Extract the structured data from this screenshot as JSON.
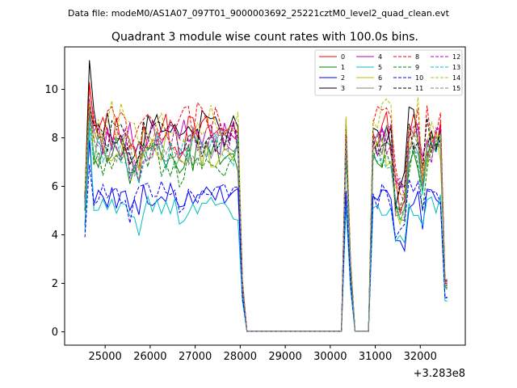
{
  "header": {
    "data_file": "Data file: modeM0/AS1A07_097T01_9000003692_25221cztM0_level2_quad_clean.evt"
  },
  "chart_data": {
    "type": "line",
    "title": "Quadrant 3 module wise count rates with 100.0s bins.",
    "xlabel": "",
    "ylabel": "",
    "x_offset_label": "+3.283e8",
    "xlim": [
      24100,
      33000
    ],
    "ylim": [
      -0.55,
      11.75
    ],
    "xticks": [
      25000,
      26000,
      27000,
      28000,
      29000,
      30000,
      31000,
      32000
    ],
    "yticks": [
      0,
      2,
      4,
      6,
      8,
      10
    ],
    "grid": false,
    "legend": {
      "position": "top-right",
      "columns": 4
    },
    "x": [
      24550,
      24650,
      24750,
      24850,
      24950,
      25050,
      25150,
      25250,
      25350,
      25450,
      25550,
      25650,
      25750,
      25850,
      25950,
      26050,
      26150,
      26250,
      26350,
      26450,
      26550,
      26650,
      26750,
      26850,
      26950,
      27050,
      27150,
      27250,
      27350,
      27450,
      27550,
      27650,
      27750,
      27850,
      27950,
      28050,
      28150,
      28250,
      28350,
      28450,
      28550,
      28650,
      28750,
      28850,
      28950,
      29050,
      29150,
      29250,
      29350,
      29450,
      29550,
      29650,
      29750,
      29850,
      29950,
      30050,
      30150,
      30250,
      30350,
      30450,
      30550,
      30650,
      30750,
      30850,
      30950,
      31050,
      31150,
      31250,
      31350,
      31450,
      31550,
      31650,
      31750,
      31850,
      31950,
      32050,
      32150,
      32250,
      32350,
      32450,
      32550,
      32600
    ],
    "series": [
      {
        "name": "0",
        "color": "#ff0000",
        "dash": false,
        "level": 8.2,
        "start": 5.5,
        "peak": 10.3
      },
      {
        "name": "1",
        "color": "#008000",
        "dash": false,
        "level": 7.3,
        "start": 5.0,
        "peak": 9.2
      },
      {
        "name": "2",
        "color": "#0000ff",
        "dash": false,
        "level": 5.6,
        "start": 4.4,
        "peak": 7.9
      },
      {
        "name": "3",
        "color": "#000000",
        "dash": false,
        "level": 8.4,
        "start": 5.6,
        "peak": 11.2
      },
      {
        "name": "4",
        "color": "#bf00bf",
        "dash": false,
        "level": 8.0,
        "start": 5.4,
        "peak": 9.6
      },
      {
        "name": "5",
        "color": "#00bfbf",
        "dash": false,
        "level": 5.1,
        "start": 4.1,
        "peak": 8.5
      },
      {
        "name": "6",
        "color": "#bfbf00",
        "dash": false,
        "level": 7.5,
        "start": 5.2,
        "peak": 9.4
      },
      {
        "name": "7",
        "color": "#808080",
        "dash": false,
        "level": 7.7,
        "start": 5.3,
        "peak": 9.0
      },
      {
        "name": "8",
        "color": "#ff0000",
        "dash": true,
        "level": 8.6,
        "start": 5.7,
        "peak": 10.1
      },
      {
        "name": "9",
        "color": "#008000",
        "dash": true,
        "level": 7.1,
        "start": 5.0,
        "peak": 9.0
      },
      {
        "name": "10",
        "color": "#0000ff",
        "dash": true,
        "level": 5.7,
        "start": 3.9,
        "peak": 6.9
      },
      {
        "name": "11",
        "color": "#000000",
        "dash": true,
        "level": 8.0,
        "start": 5.5,
        "peak": 9.3
      },
      {
        "name": "12",
        "color": "#bf00bf",
        "dash": true,
        "level": 7.8,
        "start": 5.3,
        "peak": 9.1
      },
      {
        "name": "13",
        "color": "#00bfbf",
        "dash": true,
        "level": 7.4,
        "start": 5.2,
        "peak": 8.8
      },
      {
        "name": "14",
        "color": "#bfbf00",
        "dash": true,
        "level": 8.7,
        "start": 5.8,
        "peak": 9.5
      },
      {
        "name": "15",
        "color": "#808080",
        "dash": true,
        "level": 7.6,
        "start": 5.3,
        "peak": 9.2
      }
    ]
  }
}
